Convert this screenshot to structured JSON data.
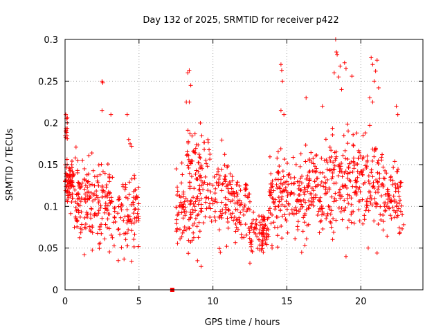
{
  "chart_data": {
    "type": "scatter",
    "title": "Day 132 of 2025, SRMTID for receiver p422",
    "xlabel": "GPS time / hours",
    "ylabel": "SRMTID / TECUs",
    "xlim": [
      0,
      24.2
    ],
    "ylim": [
      0,
      0.3
    ],
    "x_ticks": [
      0,
      5,
      10,
      15,
      20
    ],
    "y_ticks": [
      0,
      0.05,
      0.1,
      0.15,
      0.2,
      0.25,
      0.3
    ],
    "grid": true,
    "legend": "none",
    "marker": "plus",
    "color": "#ff0000",
    "series": [
      {
        "name": "SRMTID",
        "note": "representative sample of the dense point cloud, read off axes",
        "segments": [
          {
            "x_range": [
              0.0,
              0.6
            ],
            "y_center": 0.13,
            "y_spread": 0.03,
            "n": 70
          },
          {
            "x_range": [
              0.0,
              0.2
            ],
            "y_center": 0.19,
            "y_spread": 0.02,
            "n": 10
          },
          {
            "x_range": [
              0.6,
              1.8
            ],
            "y_center": 0.11,
            "y_spread": 0.045,
            "n": 90
          },
          {
            "x_range": [
              1.8,
              3.2
            ],
            "y_center": 0.105,
            "y_spread": 0.05,
            "n": 90
          },
          {
            "x_range": [
              3.2,
              5.0
            ],
            "y_center": 0.09,
            "y_spread": 0.045,
            "n": 90
          },
          {
            "x_range": [
              7.5,
              9.0
            ],
            "y_center": 0.095,
            "y_spread": 0.05,
            "n": 90
          },
          {
            "x_range": [
              8.2,
              9.8
            ],
            "y_center": 0.16,
            "y_spread": 0.035,
            "n": 50
          },
          {
            "x_range": [
              9.0,
              11.5
            ],
            "y_center": 0.115,
            "y_spread": 0.05,
            "n": 130
          },
          {
            "x_range": [
              11.5,
              12.5
            ],
            "y_center": 0.1,
            "y_spread": 0.04,
            "n": 60
          },
          {
            "x_range": [
              12.5,
              13.8
            ],
            "y_center": 0.07,
            "y_spread": 0.025,
            "n": 80
          },
          {
            "x_range": [
              13.8,
              15.5
            ],
            "y_center": 0.11,
            "y_spread": 0.05,
            "n": 110
          },
          {
            "x_range": [
              15.5,
              17.5
            ],
            "y_center": 0.115,
            "y_spread": 0.055,
            "n": 130
          },
          {
            "x_range": [
              17.5,
              19.5
            ],
            "y_center": 0.13,
            "y_spread": 0.06,
            "n": 130
          },
          {
            "x_range": [
              19.5,
              21.5
            ],
            "y_center": 0.13,
            "y_spread": 0.055,
            "n": 120
          },
          {
            "x_range": [
              21.5,
              22.8
            ],
            "y_center": 0.11,
            "y_spread": 0.045,
            "n": 80
          }
        ],
        "points": [
          {
            "x": 0.05,
            "y": 0.21
          },
          {
            "x": 0.1,
            "y": 0.205
          },
          {
            "x": 0.15,
            "y": 0.2
          },
          {
            "x": 2.5,
            "y": 0.25
          },
          {
            "x": 2.55,
            "y": 0.248
          },
          {
            "x": 2.5,
            "y": 0.215
          },
          {
            "x": 3.1,
            "y": 0.21
          },
          {
            "x": 4.2,
            "y": 0.21
          },
          {
            "x": 4.3,
            "y": 0.18
          },
          {
            "x": 4.4,
            "y": 0.175
          },
          {
            "x": 4.5,
            "y": 0.172
          },
          {
            "x": 1.3,
            "y": 0.042
          },
          {
            "x": 3.6,
            "y": 0.035
          },
          {
            "x": 4.5,
            "y": 0.034
          },
          {
            "x": 7.25,
            "y": 0.0
          },
          {
            "x": 8.4,
            "y": 0.263
          },
          {
            "x": 8.3,
            "y": 0.26
          },
          {
            "x": 8.5,
            "y": 0.245
          },
          {
            "x": 8.2,
            "y": 0.225
          },
          {
            "x": 8.4,
            "y": 0.225
          },
          {
            "x": 9.2,
            "y": 0.028
          },
          {
            "x": 12.5,
            "y": 0.032
          },
          {
            "x": 14.6,
            "y": 0.27
          },
          {
            "x": 14.65,
            "y": 0.263
          },
          {
            "x": 14.7,
            "y": 0.25
          },
          {
            "x": 14.6,
            "y": 0.215
          },
          {
            "x": 14.8,
            "y": 0.21
          },
          {
            "x": 18.3,
            "y": 0.3
          },
          {
            "x": 18.35,
            "y": 0.285
          },
          {
            "x": 18.4,
            "y": 0.282
          },
          {
            "x": 18.2,
            "y": 0.26
          },
          {
            "x": 18.6,
            "y": 0.268
          },
          {
            "x": 18.5,
            "y": 0.255
          },
          {
            "x": 18.7,
            "y": 0.24
          },
          {
            "x": 19.4,
            "y": 0.256
          },
          {
            "x": 18.9,
            "y": 0.272
          },
          {
            "x": 19.0,
            "y": 0.265
          },
          {
            "x": 20.7,
            "y": 0.278
          },
          {
            "x": 20.8,
            "y": 0.27
          },
          {
            "x": 21.1,
            "y": 0.275
          },
          {
            "x": 21.0,
            "y": 0.262
          },
          {
            "x": 20.9,
            "y": 0.25
          },
          {
            "x": 21.2,
            "y": 0.242
          },
          {
            "x": 20.6,
            "y": 0.23
          },
          {
            "x": 20.8,
            "y": 0.225
          },
          {
            "x": 20.3,
            "y": 0.188
          },
          {
            "x": 20.15,
            "y": 0.185
          },
          {
            "x": 16.3,
            "y": 0.23
          },
          {
            "x": 17.4,
            "y": 0.22
          },
          {
            "x": 22.4,
            "y": 0.22
          },
          {
            "x": 22.5,
            "y": 0.21
          },
          {
            "x": 21.1,
            "y": 0.044
          },
          {
            "x": 20.5,
            "y": 0.05
          },
          {
            "x": 19.0,
            "y": 0.04
          },
          {
            "x": 16.0,
            "y": 0.045
          },
          {
            "x": 22.9,
            "y": 0.078
          },
          {
            "x": 22.8,
            "y": 0.09
          },
          {
            "x": 14.0,
            "y": 0.05
          },
          {
            "x": 10.5,
            "y": 0.045
          }
        ]
      }
    ]
  }
}
